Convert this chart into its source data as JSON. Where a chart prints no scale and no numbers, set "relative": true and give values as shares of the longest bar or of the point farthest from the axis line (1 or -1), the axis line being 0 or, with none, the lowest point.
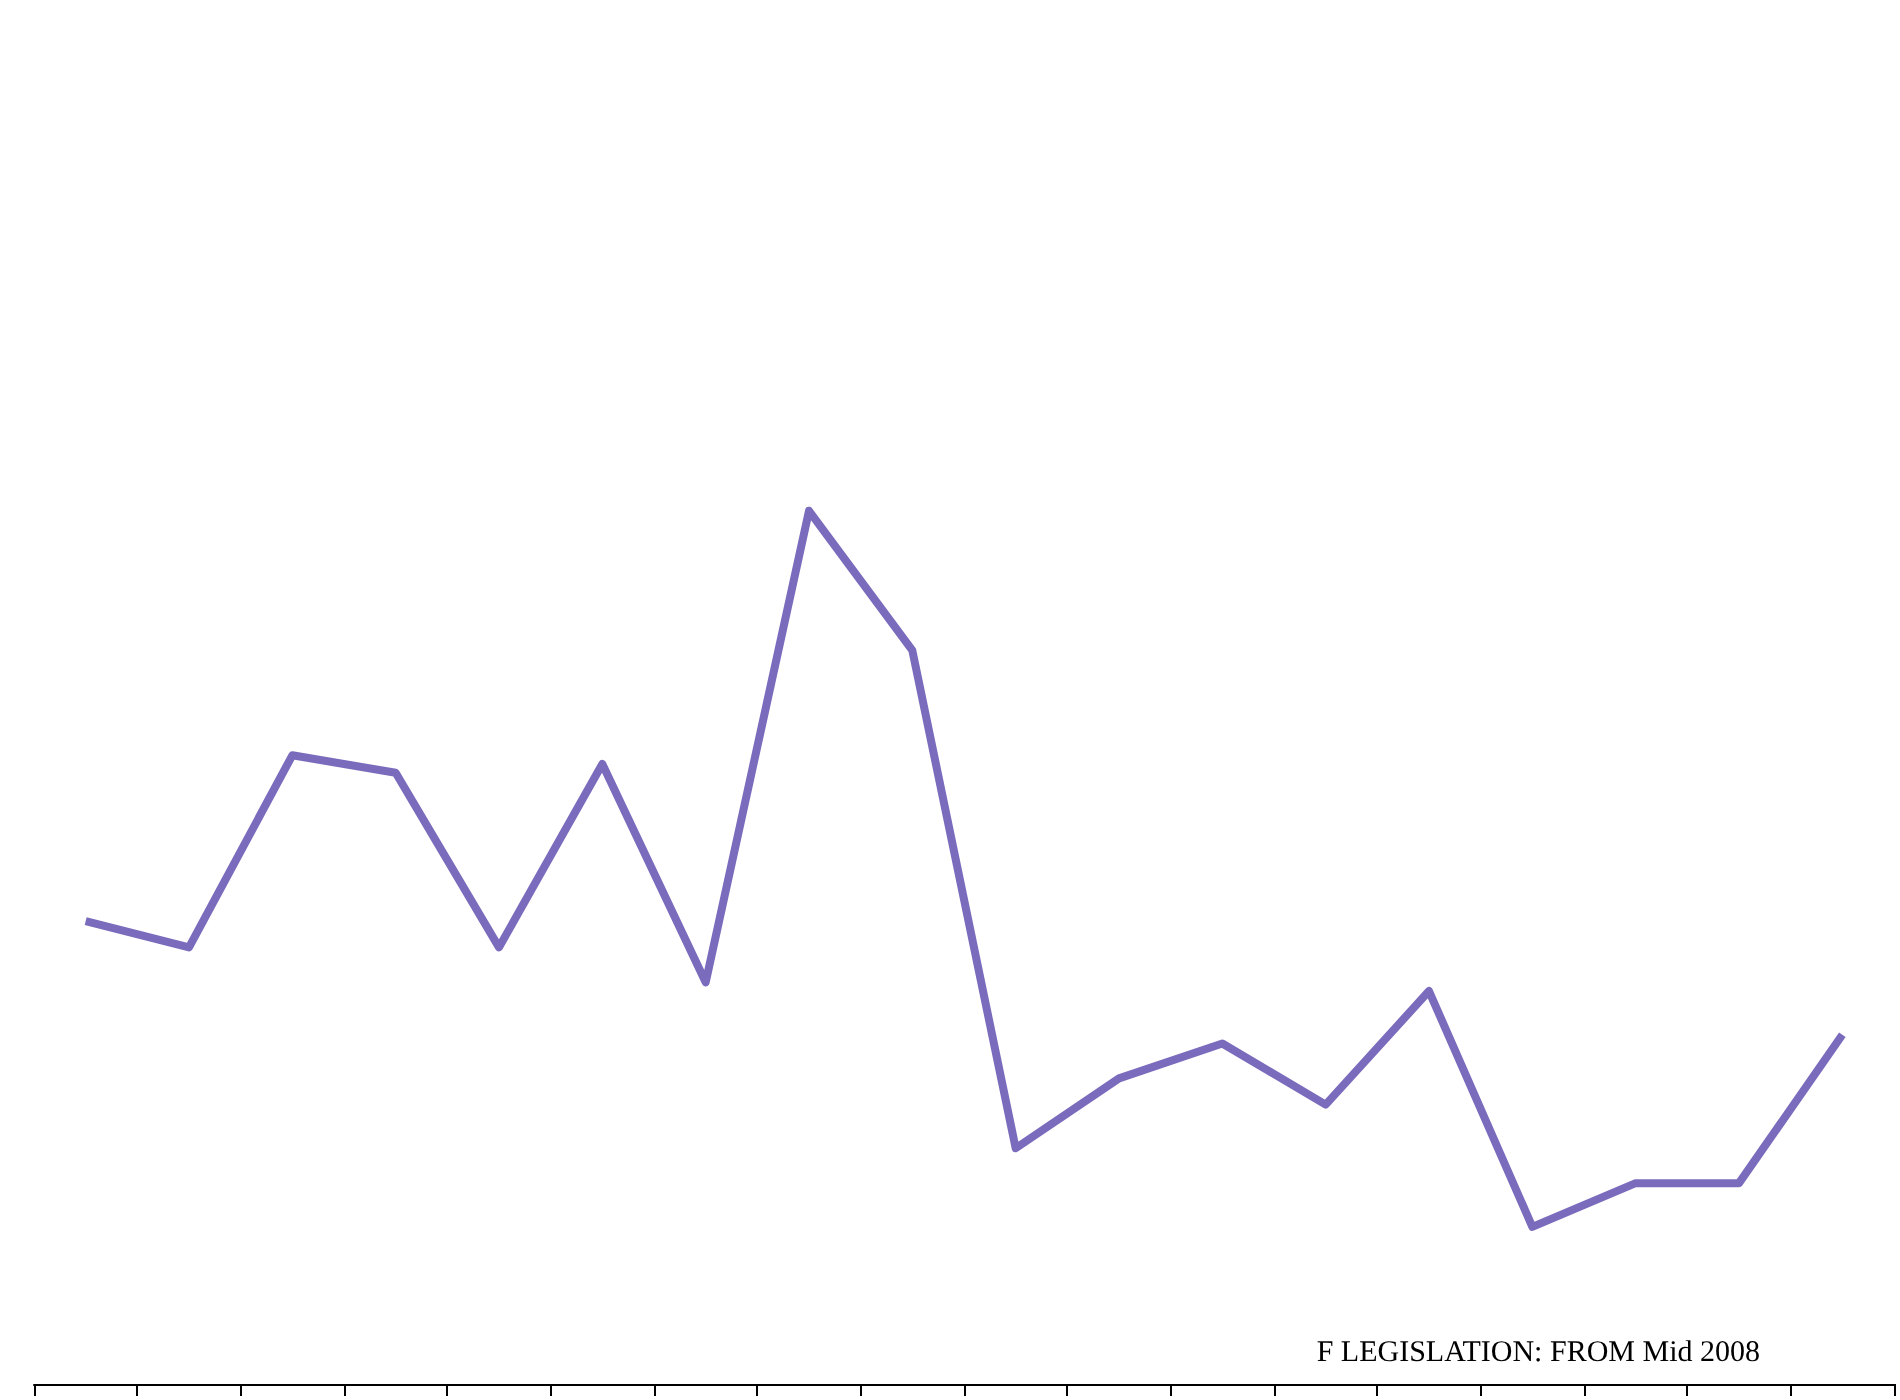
{
  "chart_data": {
    "type": "line",
    "relative": true,
    "grid": false,
    "categories": [
      null,
      null,
      null,
      null,
      null,
      null,
      null,
      null,
      null,
      null,
      null,
      null,
      null,
      null,
      null,
      null,
      null,
      null
    ],
    "series": [
      {
        "color": "#7b6bbd",
        "values": [
          0.53,
          0.5,
          0.72,
          0.7,
          0.5,
          0.71,
          0.46,
          1,
          0.84,
          0.27,
          0.35,
          0.39,
          0.32,
          0.45,
          0.18,
          0.23,
          0.23,
          0.4
        ]
      }
    ],
    "annotations": [
      "F LEGISLATION: FROM Mid 2008"
    ]
  }
}
